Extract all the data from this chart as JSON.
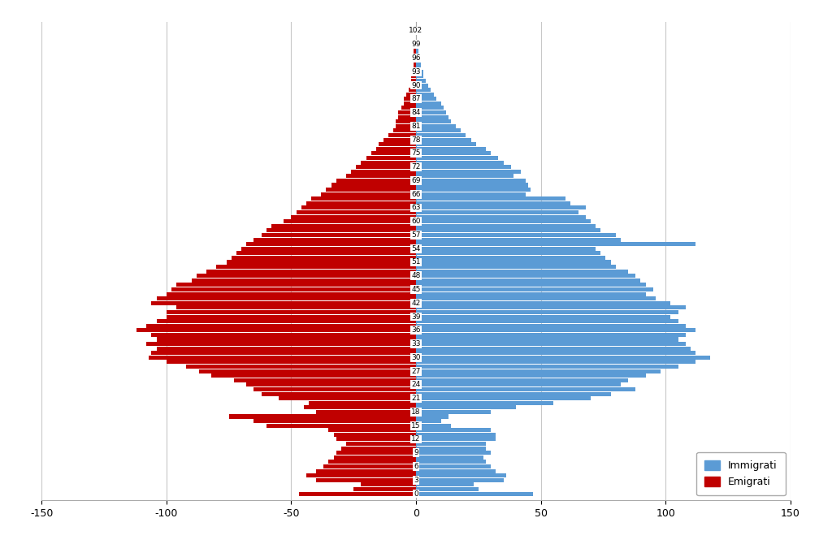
{
  "ages": [
    0,
    1,
    2,
    3,
    4,
    5,
    6,
    7,
    8,
    9,
    10,
    11,
    12,
    13,
    14,
    15,
    16,
    17,
    18,
    19,
    20,
    21,
    22,
    23,
    24,
    25,
    26,
    27,
    28,
    29,
    30,
    31,
    32,
    33,
    34,
    35,
    36,
    37,
    38,
    39,
    40,
    41,
    42,
    43,
    44,
    45,
    46,
    47,
    48,
    49,
    50,
    51,
    52,
    53,
    54,
    55,
    56,
    57,
    58,
    59,
    60,
    61,
    62,
    63,
    64,
    65,
    66,
    67,
    68,
    69,
    70,
    71,
    72,
    73,
    74,
    75,
    76,
    77,
    78,
    79,
    80,
    81,
    82,
    83,
    84,
    85,
    86,
    87,
    88,
    89,
    90,
    91,
    92,
    93,
    94,
    95,
    96,
    97,
    98,
    99,
    100,
    101,
    102
  ],
  "immigrati": [
    47,
    25,
    23,
    35,
    36,
    32,
    30,
    28,
    27,
    30,
    28,
    28,
    32,
    32,
    30,
    14,
    10,
    13,
    30,
    40,
    55,
    70,
    78,
    88,
    82,
    85,
    92,
    98,
    105,
    112,
    118,
    112,
    110,
    108,
    105,
    108,
    112,
    108,
    105,
    102,
    105,
    108,
    102,
    96,
    92,
    95,
    92,
    90,
    88,
    85,
    80,
    78,
    76,
    74,
    72,
    112,
    82,
    80,
    74,
    72,
    70,
    68,
    65,
    68,
    62,
    60,
    44,
    46,
    45,
    44,
    39,
    42,
    38,
    35,
    33,
    30,
    28,
    24,
    22,
    20,
    18,
    16,
    14,
    13,
    12,
    11,
    10,
    8,
    7,
    6,
    5,
    4,
    3,
    3,
    2,
    2,
    2,
    1,
    1,
    1,
    0,
    0,
    0
  ],
  "emigrati": [
    -47,
    -25,
    -22,
    -40,
    -44,
    -40,
    -37,
    -35,
    -33,
    -32,
    -30,
    -28,
    -32,
    -33,
    -35,
    -60,
    -65,
    -75,
    -40,
    -45,
    -43,
    -55,
    -62,
    -65,
    -68,
    -73,
    -82,
    -87,
    -92,
    -100,
    -107,
    -106,
    -104,
    -108,
    -104,
    -106,
    -112,
    -108,
    -104,
    -100,
    -100,
    -96,
    -106,
    -104,
    -100,
    -98,
    -96,
    -90,
    -88,
    -84,
    -80,
    -76,
    -74,
    -72,
    -70,
    -68,
    -65,
    -62,
    -60,
    -58,
    -53,
    -50,
    -48,
    -46,
    -44,
    -42,
    -38,
    -36,
    -34,
    -32,
    -28,
    -26,
    -24,
    -22,
    -20,
    -18,
    -16,
    -15,
    -13,
    -11,
    -9,
    -8,
    -8,
    -7,
    -7,
    -6,
    -5,
    -5,
    -4,
    -3,
    -2,
    -2,
    -2,
    -1,
    -1,
    -1,
    -1,
    -1,
    -1,
    -1,
    0,
    0,
    0
  ],
  "color_immigrati": "#5B9BD5",
  "color_emigrati": "#C00000",
  "xlim_min": -150,
  "xlim_max": 150,
  "xticks": [
    -150,
    -100,
    -50,
    0,
    50,
    100,
    150
  ],
  "background_color": "#FFFFFF",
  "legend_immigrati": "Immigrati",
  "legend_emigrati": "Emigrati",
  "grid_color": "#C8C8C8",
  "spine_color": "#AAAAAA",
  "bar_height": 0.9
}
